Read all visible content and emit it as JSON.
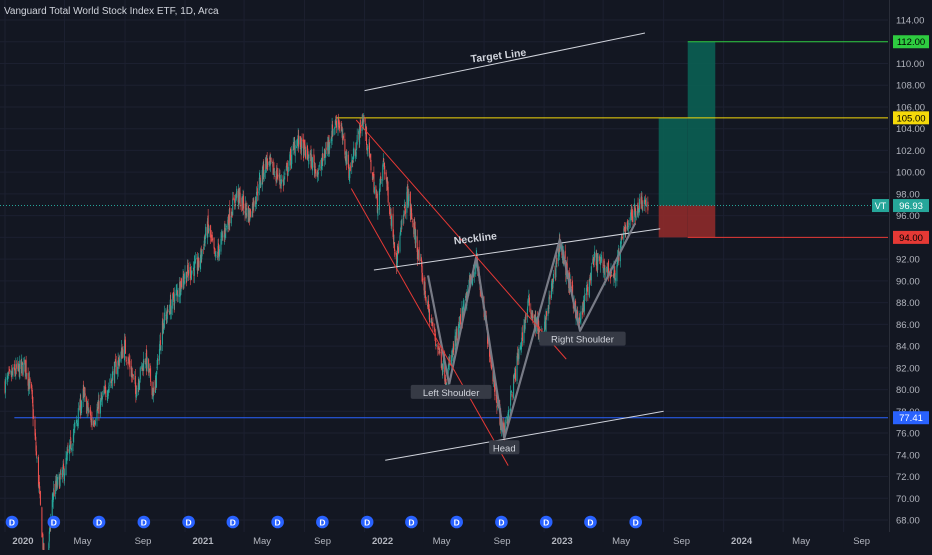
{
  "header": {
    "title": "Vanguard Total World Stock Index ETF, 1D, Arca"
  },
  "colors": {
    "background": "#131722",
    "up": "#26a69a",
    "down": "#ef5350",
    "neckline": "#d1d4dc",
    "target_line": "#d1d4dc",
    "pattern": "#787b86",
    "channel": "#e53935",
    "level_105": "#f5d90a",
    "level_112": "#2ecc40",
    "level_94": "#e53935",
    "level_77": "#2962ff",
    "current": "#26a69a",
    "profit_zone": "#0b5e53",
    "loss_zone": "#8b2a2a",
    "dividend": "#2962ff"
  },
  "chart_data": {
    "type": "candlestick",
    "title": "Vanguard Total World Stock Index ETF, 1D, Arca",
    "symbol": "VT",
    "y_axis": {
      "min": 67,
      "max": 115,
      "ticks": [
        68,
        70,
        72,
        74,
        76,
        78,
        80,
        82,
        84,
        86,
        88,
        90,
        92,
        94,
        96,
        98,
        100,
        102,
        104,
        106,
        108,
        110,
        112,
        114
      ],
      "tick_labels": [
        "68.00",
        "70.00",
        "72.00",
        "74.00",
        "76.00",
        "78.00",
        "80.00",
        "82.00",
        "84.00",
        "86.00",
        "88.00",
        "90.00",
        "92.00",
        "94.00",
        "96.00",
        "98.00",
        "100.00",
        "102.00",
        "104.00",
        "106.00",
        "108.00",
        "110.00",
        "112.00",
        "114.00"
      ]
    },
    "x_axis": {
      "range": [
        "2020-01-01",
        "2024-11-20"
      ],
      "ticks": [
        {
          "date": "2020-01-01",
          "label": "2020",
          "bold": true
        },
        {
          "date": "2020-05-01",
          "label": "May",
          "bold": false
        },
        {
          "date": "2020-09-01",
          "label": "Sep",
          "bold": false
        },
        {
          "date": "2021-01-01",
          "label": "2021",
          "bold": true
        },
        {
          "date": "2021-05-01",
          "label": "May",
          "bold": false
        },
        {
          "date": "2021-09-01",
          "label": "Sep",
          "bold": false
        },
        {
          "date": "2022-01-01",
          "label": "2022",
          "bold": true
        },
        {
          "date": "2022-05-01",
          "label": "May",
          "bold": false
        },
        {
          "date": "2022-09-01",
          "label": "Sep",
          "bold": false
        },
        {
          "date": "2023-01-01",
          "label": "2023",
          "bold": true
        },
        {
          "date": "2023-05-01",
          "label": "May",
          "bold": false
        },
        {
          "date": "2023-09-01",
          "label": "Sep",
          "bold": false
        },
        {
          "date": "2024-01-01",
          "label": "2024",
          "bold": true
        },
        {
          "date": "2024-05-01",
          "label": "May",
          "bold": false
        },
        {
          "date": "2024-09-01",
          "label": "Sep",
          "bold": false
        }
      ]
    },
    "price_path": [
      [
        "2020-01-01",
        80.5
      ],
      [
        "2020-01-20",
        81.6
      ],
      [
        "2020-02-12",
        82.2
      ],
      [
        "2020-02-24",
        79.5
      ],
      [
        "2020-03-10",
        71.0
      ],
      [
        "2020-03-23",
        62.5
      ],
      [
        "2020-04-08",
        70.5
      ],
      [
        "2020-04-30",
        72.5
      ],
      [
        "2020-06-08",
        79.5
      ],
      [
        "2020-06-26",
        77.0
      ],
      [
        "2020-07-31",
        80.5
      ],
      [
        "2020-08-31",
        84.0
      ],
      [
        "2020-09-23",
        80.0
      ],
      [
        "2020-10-12",
        83.0
      ],
      [
        "2020-10-30",
        79.5
      ],
      [
        "2020-11-16",
        86.0
      ],
      [
        "2020-12-31",
        90.5
      ],
      [
        "2021-01-29",
        91.5
      ],
      [
        "2021-02-16",
        95.0
      ],
      [
        "2021-03-04",
        92.0
      ],
      [
        "2021-04-16",
        98.0
      ],
      [
        "2021-05-12",
        96.0
      ],
      [
        "2021-06-15",
        101.0
      ],
      [
        "2021-07-19",
        99.0
      ],
      [
        "2021-08-16",
        103.0
      ],
      [
        "2021-09-30",
        100.0
      ],
      [
        "2021-10-29",
        104.0
      ],
      [
        "2021-11-08",
        105.0
      ],
      [
        "2021-12-01",
        100.0
      ],
      [
        "2021-12-29",
        105.0
      ],
      [
        "2022-01-27",
        97.0
      ],
      [
        "2022-02-09",
        101.0
      ],
      [
        "2022-03-07",
        92.0
      ],
      [
        "2022-03-29",
        98.0
      ],
      [
        "2022-05-12",
        87.0
      ],
      [
        "2022-06-16",
        81.0
      ],
      [
        "2022-08-16",
        92.0
      ],
      [
        "2022-09-30",
        78.0
      ],
      [
        "2022-10-12",
        76.0
      ],
      [
        "2022-11-30",
        88.0
      ],
      [
        "2022-12-28",
        84.5
      ],
      [
        "2023-02-02",
        93.5
      ],
      [
        "2023-03-13",
        86.0
      ],
      [
        "2023-04-14",
        92.0
      ],
      [
        "2023-05-24",
        90.5
      ],
      [
        "2023-06-15",
        95.0
      ],
      [
        "2023-07-20",
        97.5
      ],
      [
        "2023-07-31",
        96.93
      ]
    ],
    "current_price": {
      "symbol": "VT",
      "value": 96.93,
      "label": "96.93"
    },
    "levels": [
      {
        "value": 112.0,
        "label": "112.00",
        "color": "#2ecc40"
      },
      {
        "value": 105.0,
        "label": "105.00",
        "color": "#f5d90a"
      },
      {
        "value": 94.0,
        "label": "94.00",
        "color": "#e53935"
      },
      {
        "value": 77.41,
        "label": "77.41",
        "color": "#2962ff"
      }
    ],
    "trend_lines": [
      {
        "id": "target",
        "from": [
          "2022-01-01",
          107.5
        ],
        "to": [
          "2023-07-25",
          112.8
        ]
      },
      {
        "id": "neckline",
        "from": [
          "2022-01-20",
          91.0
        ],
        "to": [
          "2023-08-25",
          94.8
        ]
      },
      {
        "id": "support",
        "from": [
          "2022-02-12",
          73.5
        ],
        "to": [
          "2023-09-01",
          78.0
        ]
      },
      {
        "id": "head-shoulders",
        "points": [
          [
            "2022-05-10",
            90.5
          ],
          [
            "2022-06-22",
            80.5
          ],
          [
            "2022-08-16",
            92.2
          ],
          [
            "2022-10-12",
            75.5
          ],
          [
            "2023-02-02",
            93.8
          ],
          [
            "2023-03-15",
            85.4
          ],
          [
            "2023-07-05",
            95.3
          ]
        ]
      }
    ],
    "channel_lines": [
      {
        "from": [
          "2021-12-05",
          98.5
        ],
        "to": [
          "2022-10-20",
          73.0
        ]
      },
      {
        "from": [
          "2021-12-15",
          104.8
        ],
        "to": [
          "2023-02-15",
          82.8
        ]
      }
    ],
    "position": {
      "profit_zones": [
        {
          "from": "2023-08-22",
          "to": "2023-10-20",
          "low": 96.93,
          "high": 105.0
        },
        {
          "from": "2023-10-20",
          "to": "2023-12-15",
          "low": 96.93,
          "high": 112.0
        }
      ],
      "loss_zones": [
        {
          "from": "2023-08-22",
          "to": "2023-10-20",
          "low": 94.0,
          "high": 96.93
        },
        {
          "from": "2023-10-20",
          "to": "2023-12-15",
          "low": 94.0,
          "high": 96.93
        }
      ]
    },
    "annotations": [
      {
        "text": "Target Line",
        "at": [
          "2022-10-01",
          110.4
        ],
        "angle": -7,
        "style": "plain"
      },
      {
        "text": "Neckline",
        "at": [
          "2022-08-15",
          93.6
        ],
        "angle": -7,
        "style": "plain"
      },
      {
        "text": "Left Shoulder",
        "at": [
          "2022-06-26",
          79.7
        ],
        "style": "box"
      },
      {
        "text": "Right Shoulder",
        "at": [
          "2023-03-20",
          84.6
        ],
        "style": "box"
      },
      {
        "text": "Head",
        "at": [
          "2022-10-12",
          74.6
        ],
        "style": "box"
      }
    ],
    "dividend_markers": {
      "label": "D",
      "dates": [
        "2019-12-24",
        "2020-03-24",
        "2020-06-24",
        "2020-09-23",
        "2020-12-23",
        "2021-03-23",
        "2021-06-22",
        "2021-09-21",
        "2021-12-21",
        "2022-03-21",
        "2022-06-21",
        "2022-09-20",
        "2022-12-20",
        "2023-03-20",
        "2023-06-20"
      ]
    }
  }
}
